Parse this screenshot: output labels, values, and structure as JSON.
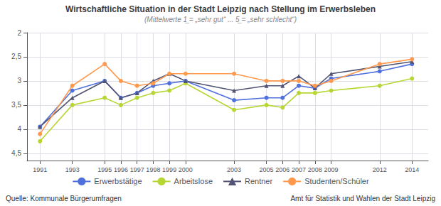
{
  "chart_data": {
    "type": "line",
    "title": "Wirtschaftliche Situation in der Stadt Leipzig nach Stellung im Erwerbsleben",
    "subtitle": "(Mittelwerte 1̲ = „sehr gut“ ... 5̲ = „sehr schlecht“)",
    "x": [
      1991,
      1993,
      1995,
      1996,
      1997,
      1998,
      1999,
      2000,
      2003,
      2005,
      2006,
      2007,
      2008,
      2009,
      2012,
      2014
    ],
    "series": [
      {
        "name": "Erwerbstätige",
        "marker": "circle",
        "values": [
          3.95,
          3.2,
          3.0,
          3.35,
          3.25,
          3.1,
          3.05,
          3.0,
          3.4,
          3.35,
          3.35,
          3.1,
          3.15,
          2.95,
          2.8,
          2.65
        ]
      },
      {
        "name": "Arbeitslose",
        "marker": "circle",
        "values": [
          4.25,
          3.5,
          3.35,
          3.5,
          3.35,
          3.25,
          3.2,
          3.05,
          3.6,
          3.5,
          3.55,
          3.25,
          3.25,
          3.2,
          3.1,
          2.95
        ]
      },
      {
        "name": "Rentner",
        "marker": "triangle",
        "values": [
          3.95,
          3.35,
          3.0,
          3.35,
          3.25,
          3.0,
          2.85,
          3.0,
          3.2,
          3.1,
          3.1,
          2.9,
          3.15,
          2.85,
          2.7,
          2.6
        ]
      },
      {
        "name": "Studenten/Schüler",
        "marker": "circle",
        "values": [
          4.1,
          3.1,
          2.65,
          3.0,
          3.1,
          3.05,
          2.85,
          2.85,
          2.85,
          3.0,
          3.0,
          3.0,
          3.1,
          3.0,
          2.65,
          2.55
        ]
      }
    ],
    "xlim": [
      1990.2,
      2015.0
    ],
    "xticks": [
      1991,
      1993,
      1995,
      1996,
      1997,
      1998,
      1999,
      2000,
      2003,
      2005,
      2006,
      2007,
      2008,
      2009,
      2012,
      2014
    ],
    "ylim": [
      4.65,
      2.0
    ],
    "yticks": [
      2,
      {
        "value": 2.5,
        "label": "2,5"
      },
      3,
      {
        "value": 3.5,
        "label": "3,5"
      },
      4,
      {
        "value": 4.5,
        "label": "4,5"
      }
    ],
    "grid": true,
    "legend": "bottom",
    "annotations": [
      "Quelle: Kommunale Bürgerumfragen",
      "Amt für Statistik und Wahlen der Stadt Leipzig"
    ]
  }
}
